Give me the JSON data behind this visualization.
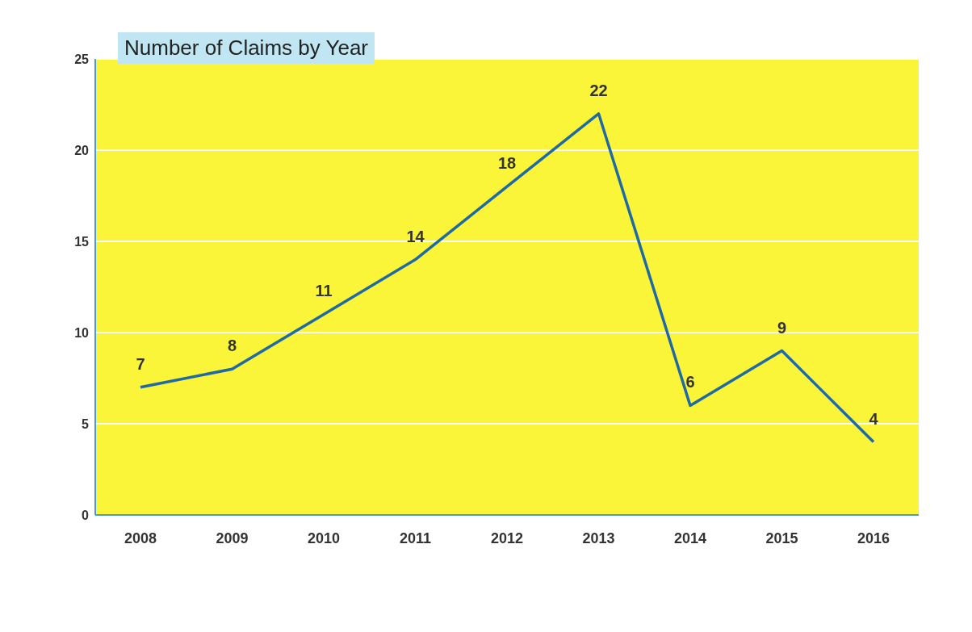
{
  "chart_data": {
    "type": "line",
    "title": "Number of Claims by Year",
    "categories": [
      "2008",
      "2009",
      "2010",
      "2011",
      "2012",
      "2013",
      "2014",
      "2015",
      "2016"
    ],
    "series": [
      {
        "color": "#1f6aa5",
        "values": [
          7,
          8,
          11,
          14,
          18,
          22,
          6,
          9,
          4
        ]
      }
    ],
    "ylim": [
      0,
      25
    ],
    "yticks": [
      0,
      5,
      10,
      15,
      20,
      25
    ],
    "grid": "y",
    "data_labels": true,
    "marker": "none"
  }
}
